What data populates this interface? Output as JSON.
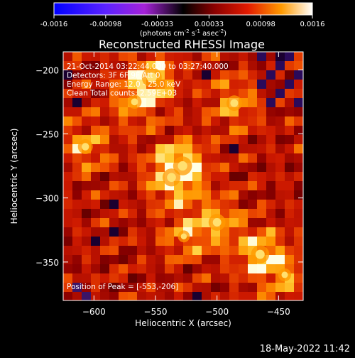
{
  "chart_data": {
    "type": "heatmap",
    "title": "Reconstructed RHESSI Image",
    "xlabel": "Heliocentric X (arcsec)",
    "ylabel": "Heliocentric Y (arcsec)",
    "xlim": [
      -625,
      -430
    ],
    "ylim": [
      -380,
      -186
    ],
    "x_ticks": [
      -600,
      -550,
      -500,
      -450
    ],
    "y_ticks": [
      -200,
      -250,
      -300,
      -350
    ],
    "colorbar": {
      "range": [
        -0.0016,
        0.0016
      ],
      "ticks": [
        "-0.0016",
        "-0.00098",
        "-0.00033",
        "0.00033",
        "0.00098",
        "0.0016"
      ],
      "unit_label": "(photons cm",
      "unit_sup1": "-2",
      "unit_mid": " s",
      "unit_sup2": "-1",
      "unit_end": " asec",
      "unit_sup3": "-2",
      "unit_close": ")"
    },
    "annotations": [
      "21-Oct-2014 03:22:44.000 to 03:27:40.000",
      "Detectors: 3F 6F 9F Att 0",
      "Energy Range: 12.0 - 25.0 keV",
      "Clean     Total counts: 2.59E+03"
    ],
    "peak_label": "Position of Peak = [-553,-206]",
    "peaks": [
      {
        "x": -553,
        "y": -206,
        "v": 1.0
      },
      {
        "x": -528,
        "y": -275,
        "v": 0.95
      },
      {
        "x": -537,
        "y": -284,
        "v": 0.9
      },
      {
        "x": -465,
        "y": -344,
        "v": 0.92
      },
      {
        "x": -500,
        "y": -319,
        "v": 0.85
      },
      {
        "x": -486,
        "y": -226,
        "v": 0.78
      },
      {
        "x": -607,
        "y": -260,
        "v": 0.75
      },
      {
        "x": -527,
        "y": -330,
        "v": 0.6
      },
      {
        "x": -567,
        "y": -225,
        "v": 0.7
      },
      {
        "x": -445,
        "y": -360,
        "v": 0.65
      }
    ]
  },
  "footer": {
    "timestamp": "18-May-2022 11:42"
  }
}
